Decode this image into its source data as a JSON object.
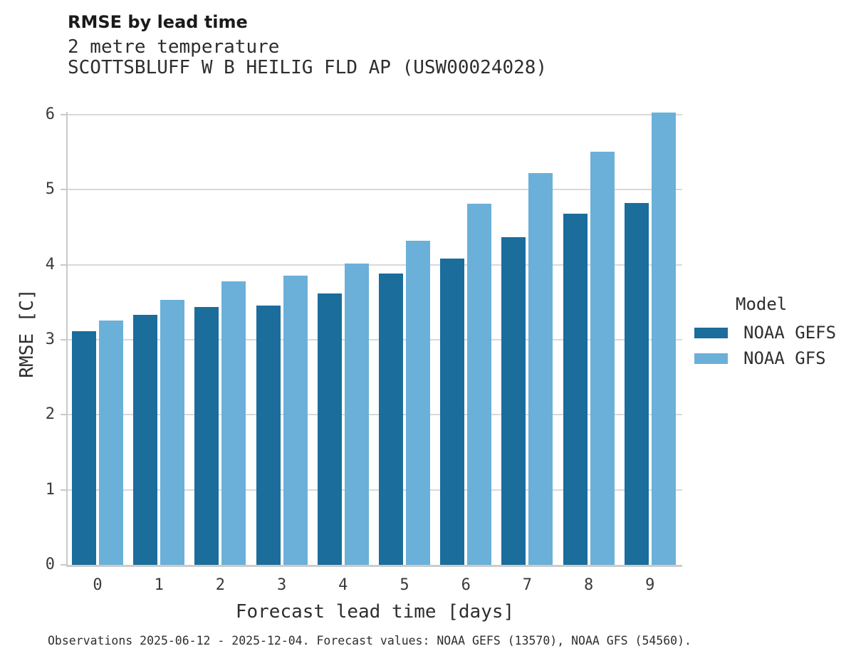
{
  "header": {
    "title": "RMSE by lead time",
    "subtitle": "2 metre temperature",
    "station": "SCOTTSBLUFF W B HEILIG FLD AP (USW00024028)"
  },
  "footer": {
    "note": "Observations 2025-06-12 - 2025-12-04. Forecast values: NOAA GEFS (13570), NOAA GFS (54560)."
  },
  "chart_data": {
    "type": "bar",
    "title": "RMSE by lead time",
    "subtitle": "2 metre temperature",
    "station": "SCOTTSBLUFF W B HEILIG FLD AP (USW00024028)",
    "xlabel": "Forecast lead time [days]",
    "ylabel": "RMSE [C]",
    "categories": [
      "0",
      "1",
      "2",
      "3",
      "4",
      "5",
      "6",
      "7",
      "8",
      "9"
    ],
    "series": [
      {
        "name": "NOAA GEFS",
        "color": "#1b6d9c",
        "values": [
          3.11,
          3.33,
          3.44,
          3.46,
          3.62,
          3.88,
          4.08,
          4.37,
          4.68,
          4.82
        ]
      },
      {
        "name": "NOAA GFS",
        "color": "#6bb0d9",
        "values": [
          3.26,
          3.53,
          3.78,
          3.85,
          4.02,
          4.32,
          4.81,
          5.22,
          5.51,
          6.03
        ]
      }
    ],
    "ylim": [
      0,
      6.17
    ],
    "yticks": [
      0,
      1,
      2,
      3,
      4,
      5,
      6
    ],
    "grid": "horizontal-only",
    "legend_title": "Model",
    "legend_position": "right-of-plot"
  },
  "colors": {
    "gefs_bar": "#1b6d9c",
    "gfs_bar": "#6bb0d9",
    "gridline": "#d9d9d9",
    "spine": "#c9c9c9",
    "title_text": "#1a1a1a",
    "body_text": "#2e2e2e",
    "background": "#ffffff"
  }
}
